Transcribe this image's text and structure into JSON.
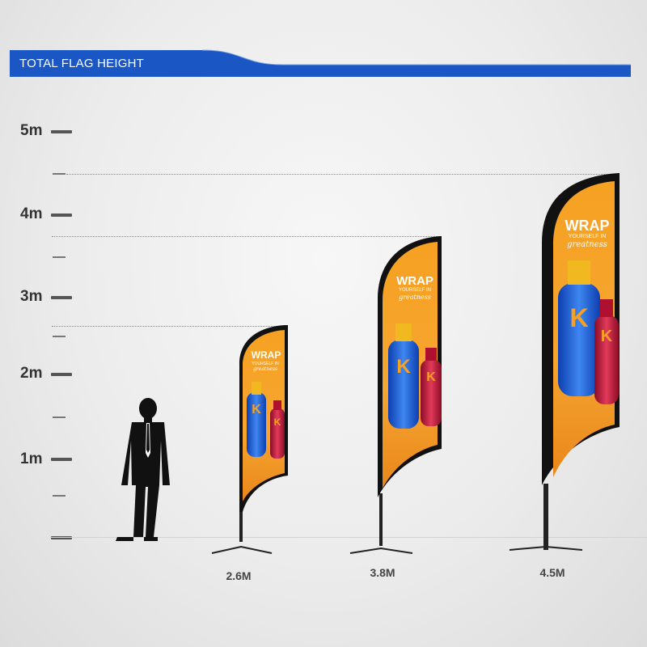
{
  "header": {
    "title": "TOTAL FLAG HEIGHT",
    "bar_color": "#1a56c4"
  },
  "scale": {
    "labels": [
      "5m",
      "4m",
      "3m",
      "2m",
      "1m"
    ]
  },
  "flags": [
    {
      "size_label": "2.6M",
      "headline": "WRAP",
      "tagline": "YOURSELF IN",
      "script": "greatness",
      "logo": "K"
    },
    {
      "size_label": "3.8M",
      "headline": "WRAP",
      "tagline": "YOURSELF IN",
      "script": "greatness",
      "logo": "K"
    },
    {
      "size_label": "4.5M",
      "headline": "WRAP",
      "tagline": "YOURSELF IN",
      "script": "greatness",
      "logo": "K"
    }
  ],
  "colors": {
    "flag_orange": "#f39a1e",
    "flag_border": "#111111",
    "bottle_blue": "#1e5bd6",
    "bottle_red": "#c4153a"
  },
  "icons": [
    "person-silhouette"
  ]
}
